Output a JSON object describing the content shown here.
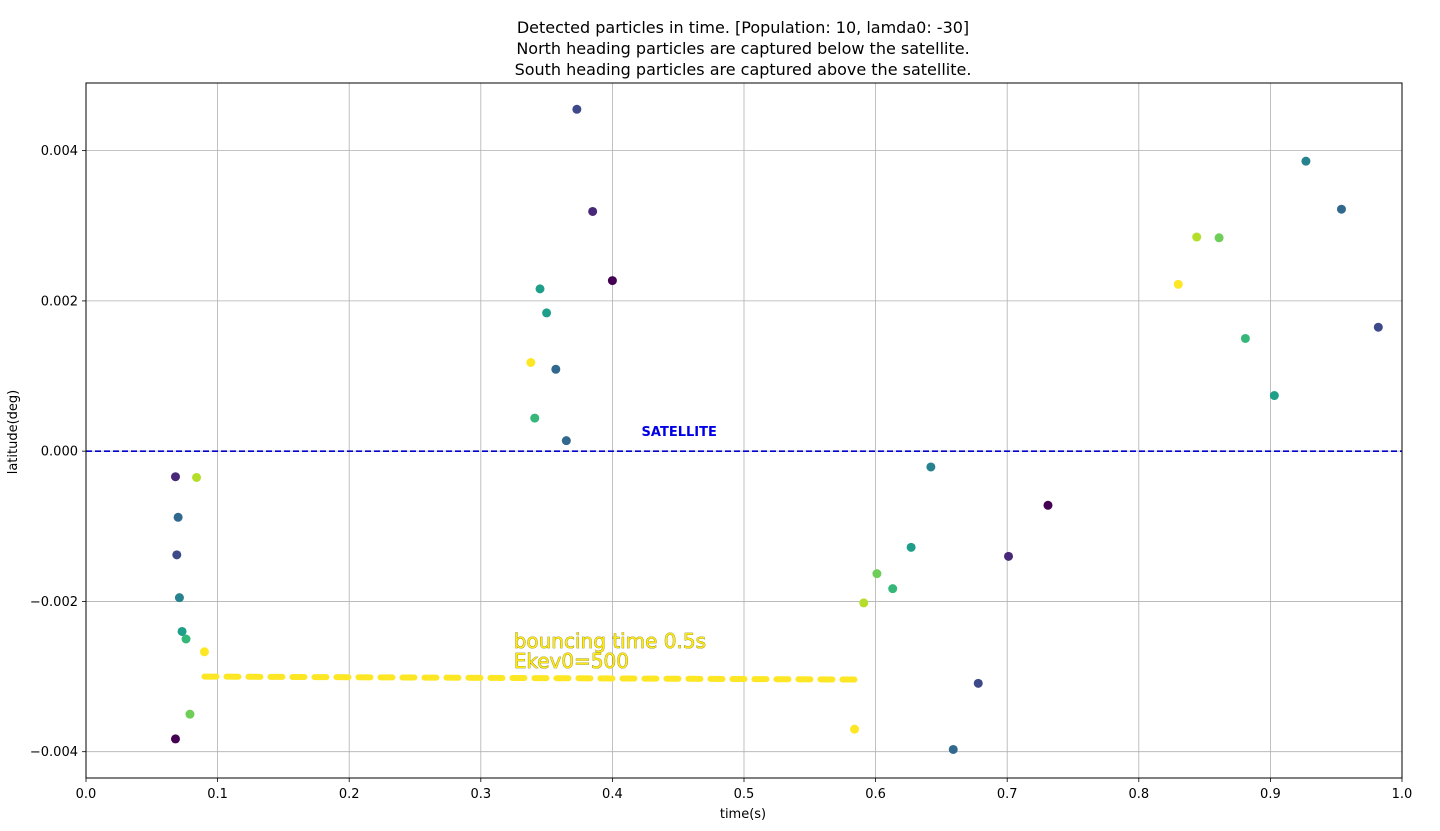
{
  "chart_data": {
    "type": "scatter",
    "title_lines": [
      "Detected particles in time. [Population: 10, lamda0: -30]",
      "North heading particles are captured below the satellite.",
      "South heading particles are captured above the satellite."
    ],
    "xlabel": "time(s)",
    "ylabel": "latitude(deg)",
    "xlim": [
      0.0,
      1.0
    ],
    "ylim": [
      -0.00435,
      0.0049
    ],
    "xticks": [
      0.0,
      0.1,
      0.2,
      0.3,
      0.4,
      0.5,
      0.6,
      0.7,
      0.8,
      0.9,
      1.0
    ],
    "xtick_labels": [
      "0.0",
      "0.1",
      "0.2",
      "0.3",
      "0.4",
      "0.5",
      "0.6",
      "0.7",
      "0.8",
      "0.9",
      "1.0"
    ],
    "yticks": [
      -0.004,
      -0.002,
      0.0,
      0.002,
      0.004
    ],
    "ytick_labels": [
      "−0.004",
      "−0.002",
      "0.000",
      "0.002",
      "0.004"
    ],
    "grid": true,
    "colormap": [
      "#440154",
      "#482878",
      "#3e4989",
      "#31688e",
      "#26828e",
      "#1f9e89",
      "#35b779",
      "#6ece58",
      "#b5de2b",
      "#fde725"
    ],
    "points": [
      {
        "x": 0.068,
        "y": -0.00383,
        "c": 0
      },
      {
        "x": 0.068,
        "y": -0.00034,
        "c": 1
      },
      {
        "x": 0.069,
        "y": -0.00138,
        "c": 2
      },
      {
        "x": 0.07,
        "y": -0.00088,
        "c": 3
      },
      {
        "x": 0.071,
        "y": -0.00195,
        "c": 4
      },
      {
        "x": 0.073,
        "y": -0.0024,
        "c": 5
      },
      {
        "x": 0.076,
        "y": -0.0025,
        "c": 6
      },
      {
        "x": 0.079,
        "y": -0.0035,
        "c": 7
      },
      {
        "x": 0.084,
        "y": -0.00035,
        "c": 8
      },
      {
        "x": 0.09,
        "y": -0.00267,
        "c": 9
      },
      {
        "x": 0.338,
        "y": 0.00118,
        "c": 9
      },
      {
        "x": 0.341,
        "y": 0.00044,
        "c": 6
      },
      {
        "x": 0.345,
        "y": 0.00216,
        "c": 5
      },
      {
        "x": 0.35,
        "y": 0.00184,
        "c": 5
      },
      {
        "x": 0.357,
        "y": 0.00109,
        "c": 3
      },
      {
        "x": 0.365,
        "y": 0.00014,
        "c": 3
      },
      {
        "x": 0.373,
        "y": 0.00455,
        "c": 2
      },
      {
        "x": 0.385,
        "y": 0.00319,
        "c": 1
      },
      {
        "x": 0.4,
        "y": 0.00227,
        "c": 0
      },
      {
        "x": 0.584,
        "y": -0.0037,
        "c": 9
      },
      {
        "x": 0.591,
        "y": -0.00202,
        "c": 8
      },
      {
        "x": 0.601,
        "y": -0.00163,
        "c": 7
      },
      {
        "x": 0.613,
        "y": -0.00183,
        "c": 6
      },
      {
        "x": 0.627,
        "y": -0.00128,
        "c": 5
      },
      {
        "x": 0.642,
        "y": -0.00021,
        "c": 4
      },
      {
        "x": 0.659,
        "y": -0.00397,
        "c": 3
      },
      {
        "x": 0.678,
        "y": -0.00309,
        "c": 2
      },
      {
        "x": 0.701,
        "y": -0.0014,
        "c": 1
      },
      {
        "x": 0.731,
        "y": -0.00072,
        "c": 0
      },
      {
        "x": 0.83,
        "y": 0.00222,
        "c": 9
      },
      {
        "x": 0.844,
        "y": 0.00285,
        "c": 8
      },
      {
        "x": 0.861,
        "y": 0.00284,
        "c": 7
      },
      {
        "x": 0.881,
        "y": 0.0015,
        "c": 6
      },
      {
        "x": 0.903,
        "y": 0.00074,
        "c": 5
      },
      {
        "x": 0.927,
        "y": 0.00386,
        "c": 4
      },
      {
        "x": 0.954,
        "y": 0.00322,
        "c": 3
      },
      {
        "x": 0.982,
        "y": 0.00165,
        "c": 2
      }
    ],
    "satellite_line": {
      "y": 0.0,
      "color": "#0000cc",
      "label": "SATELLITE",
      "label_x": 0.45
    },
    "bounce_arrow": {
      "x0": 0.09,
      "x1": 0.585,
      "y": -0.003,
      "color": "#fde725"
    },
    "annotation": {
      "lines": [
        "bouncing time 0.5s",
        "Ekev0=500"
      ],
      "x": 0.325,
      "y": -0.0025
    }
  }
}
